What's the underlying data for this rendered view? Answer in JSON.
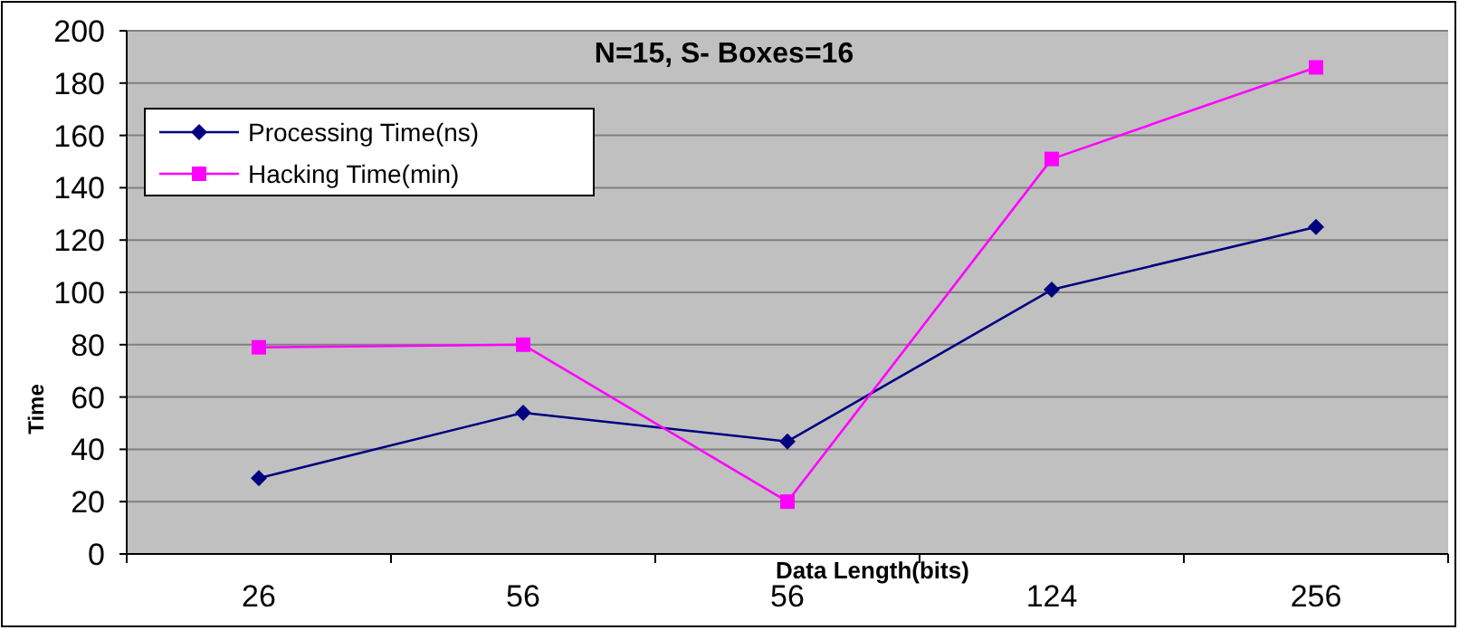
{
  "chart_data": {
    "type": "line",
    "title": "N=15, S- Boxes=16",
    "xlabel": "Data Length(bits)",
    "ylabel": "Time",
    "categories": [
      "26",
      "56",
      "56",
      "124",
      "256"
    ],
    "series": [
      {
        "name": "Processing Time(ns)",
        "color": "#000080",
        "values": [
          29,
          54,
          43,
          101,
          125
        ],
        "marker": "diamond"
      },
      {
        "name": "Hacking Time(min)",
        "color": "#ff00ff",
        "values": [
          79,
          80,
          20,
          151,
          186
        ],
        "marker": "square"
      }
    ],
    "ylim": [
      0,
      200
    ],
    "yticks": [
      0,
      20,
      40,
      60,
      80,
      100,
      120,
      140,
      160,
      180,
      200
    ],
    "grid": "y",
    "legend": "top left"
  }
}
